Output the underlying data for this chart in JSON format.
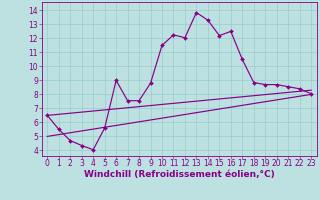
{
  "xlabel": "Windchill (Refroidissement éolien,°C)",
  "background_color": "#bde0e0",
  "line_color": "#880088",
  "grid_color": "#99cccc",
  "xticks": [
    0,
    1,
    2,
    3,
    4,
    5,
    6,
    7,
    8,
    9,
    10,
    11,
    12,
    13,
    14,
    15,
    16,
    17,
    18,
    19,
    20,
    21,
    22,
    23
  ],
  "yticks": [
    4,
    5,
    6,
    7,
    8,
    9,
    10,
    11,
    12,
    13,
    14
  ],
  "ylim": [
    3.6,
    14.6
  ],
  "xlim": [
    -0.5,
    23.5
  ],
  "series1_x": [
    0,
    1,
    2,
    3,
    4,
    5,
    6,
    7,
    8,
    9,
    10,
    11,
    12,
    13,
    14,
    15,
    16,
    17,
    18,
    19,
    20,
    21,
    22,
    23
  ],
  "series1_y": [
    6.5,
    5.5,
    4.7,
    4.35,
    4.05,
    5.6,
    9.0,
    7.55,
    7.55,
    8.8,
    11.5,
    12.25,
    12.05,
    13.85,
    13.3,
    12.2,
    12.5,
    10.5,
    8.85,
    8.7,
    8.7,
    8.55,
    8.4,
    8.05
  ],
  "series2_x": [
    0,
    23
  ],
  "series2_y": [
    6.5,
    8.3
  ],
  "series3_x": [
    0,
    23
  ],
  "series3_y": [
    5.0,
    8.0
  ],
  "tickfontsize": 5.5,
  "xlabelfontsize": 6.5,
  "markersize": 2.0,
  "linewidth": 0.85
}
